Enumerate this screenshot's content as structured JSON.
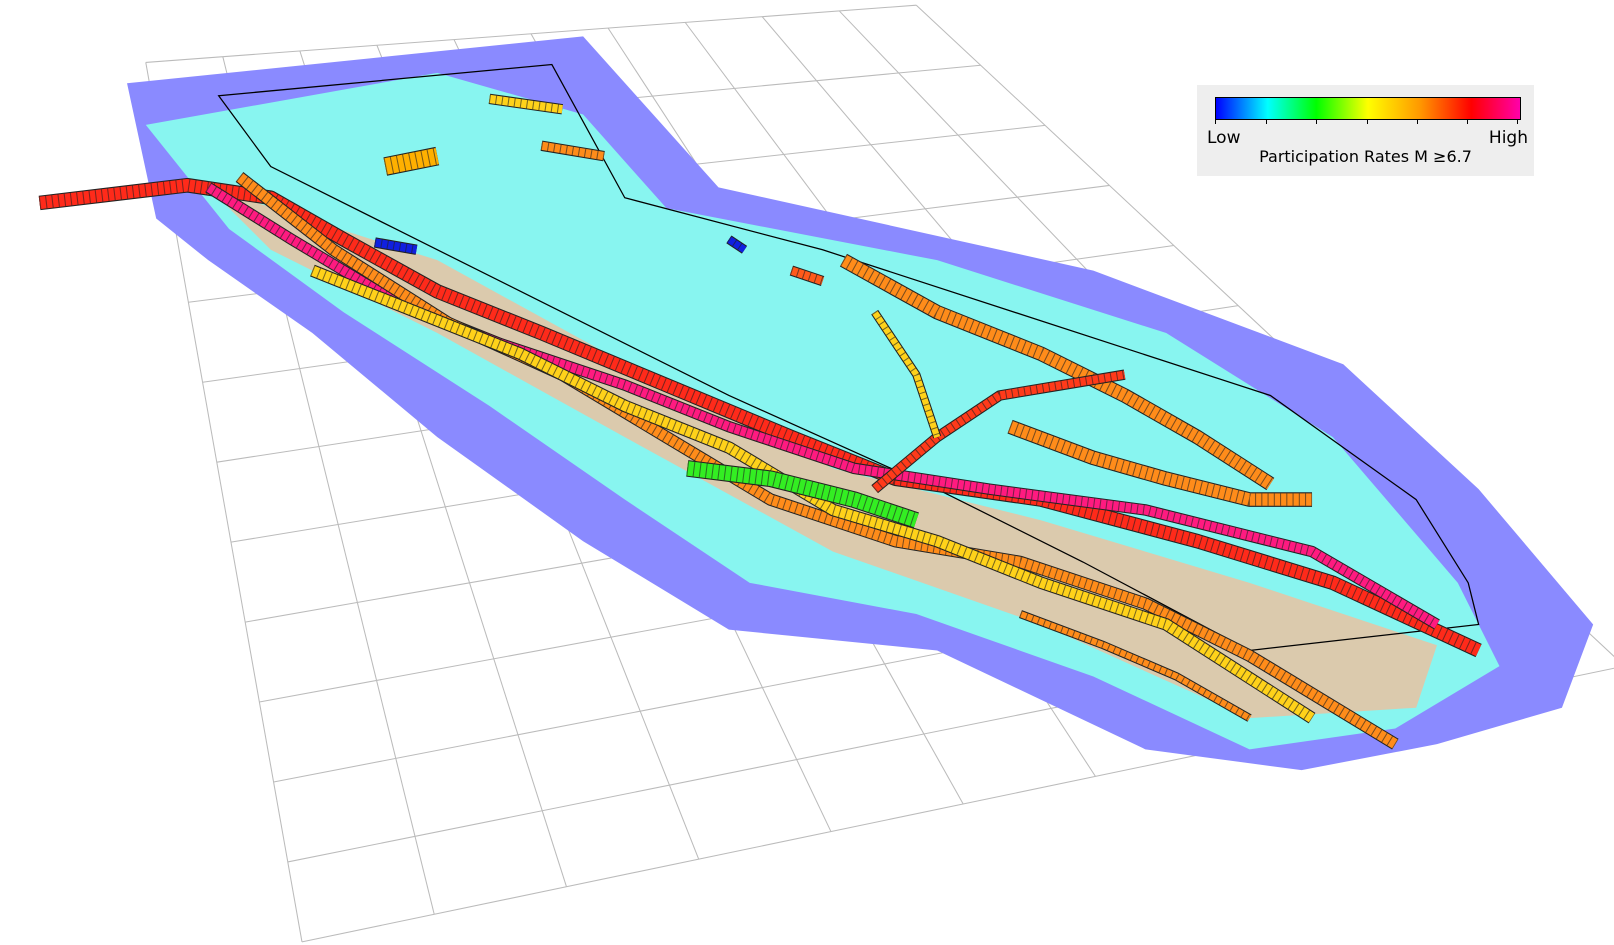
{
  "legend": {
    "low_label": "Low",
    "high_label": "High",
    "title": "Participation Rates M ≥6.7",
    "colormap": [
      "#0000ff",
      "#00ffff",
      "#00ff00",
      "#ffff00",
      "#ff9900",
      "#ff0000",
      "#ff00aa"
    ]
  },
  "colors": {
    "background": "#ffffff",
    "grid": "#bbbbbb",
    "region_low": "#8080ff",
    "region_mid": "#80ffff",
    "outline": "#000000"
  }
}
